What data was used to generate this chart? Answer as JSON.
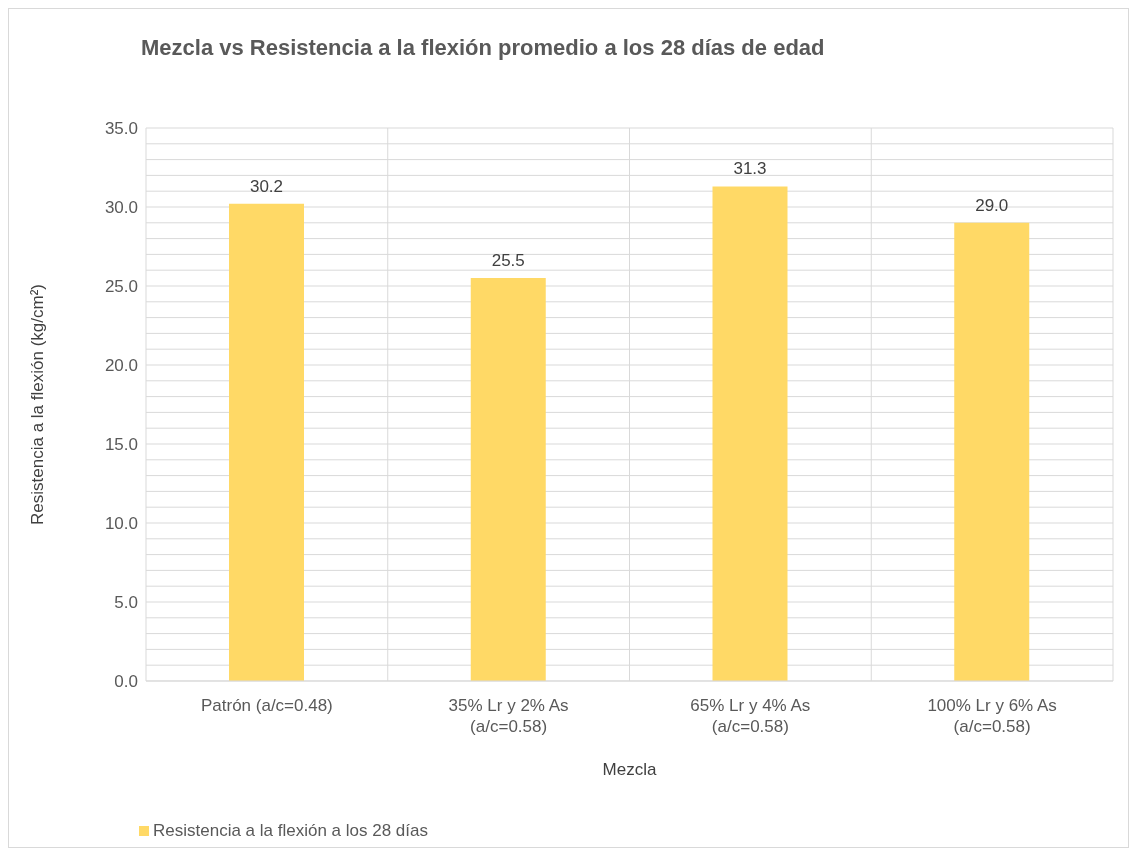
{
  "chart_data": {
    "type": "bar",
    "title": "Mezcla vs Resistencia a la flexión promedio a los 28 días de edad",
    "xlabel": "Mezcla",
    "ylabel": "Resistencia  a la flexión  (kg/cm²)",
    "categories": [
      "Patrón (a/c=0.48)",
      "35% Lr y 2% As (a/c=0.58)",
      "65% Lr y 4% As (a/c=0.58)",
      "100% Lr y 6% As (a/c=0.58)"
    ],
    "series": [
      {
        "name": "Resistencia a la flexión a los 28 días",
        "color": "#ffd966",
        "values": [
          30.2,
          25.5,
          31.3,
          29.0
        ],
        "value_labels": [
          "30.2",
          "25.5",
          "31.3",
          "29.0"
        ]
      }
    ],
    "ylim": [
      0,
      35
    ],
    "yticks": [
      {
        "value": 0,
        "label": "0.0"
      },
      {
        "value": 1,
        "label": null
      },
      {
        "value": 2,
        "label": null
      },
      {
        "value": 3,
        "label": null
      },
      {
        "value": 4,
        "label": null
      },
      {
        "value": 5,
        "label": "5.0"
      },
      {
        "value": 6,
        "label": null
      },
      {
        "value": 7,
        "label": null
      },
      {
        "value": 8,
        "label": null
      },
      {
        "value": 9,
        "label": null
      },
      {
        "value": 10,
        "label": "10.0"
      },
      {
        "value": 11,
        "label": null
      },
      {
        "value": 12,
        "label": null
      },
      {
        "value": 13,
        "label": null
      },
      {
        "value": 14,
        "label": null
      },
      {
        "value": 15,
        "label": "15.0"
      },
      {
        "value": 16,
        "label": null
      },
      {
        "value": 17,
        "label": null
      },
      {
        "value": 18,
        "label": null
      },
      {
        "value": 19,
        "label": null
      },
      {
        "value": 20,
        "label": "20.0"
      },
      {
        "value": 21,
        "label": null
      },
      {
        "value": 22,
        "label": null
      },
      {
        "value": 23,
        "label": null
      },
      {
        "value": 24,
        "label": null
      },
      {
        "value": 25,
        "label": "25.0"
      },
      {
        "value": 26,
        "label": null
      },
      {
        "value": 27,
        "label": null
      },
      {
        "value": 28,
        "label": null
      },
      {
        "value": 29,
        "label": null
      },
      {
        "value": 30,
        "label": "30.0"
      },
      {
        "value": 31,
        "label": null
      },
      {
        "value": 32,
        "label": null
      },
      {
        "value": 33,
        "label": null
      },
      {
        "value": 34,
        "label": null
      },
      {
        "value": 35,
        "label": "35.0"
      }
    ],
    "grid": true,
    "legend": "bottom left"
  }
}
